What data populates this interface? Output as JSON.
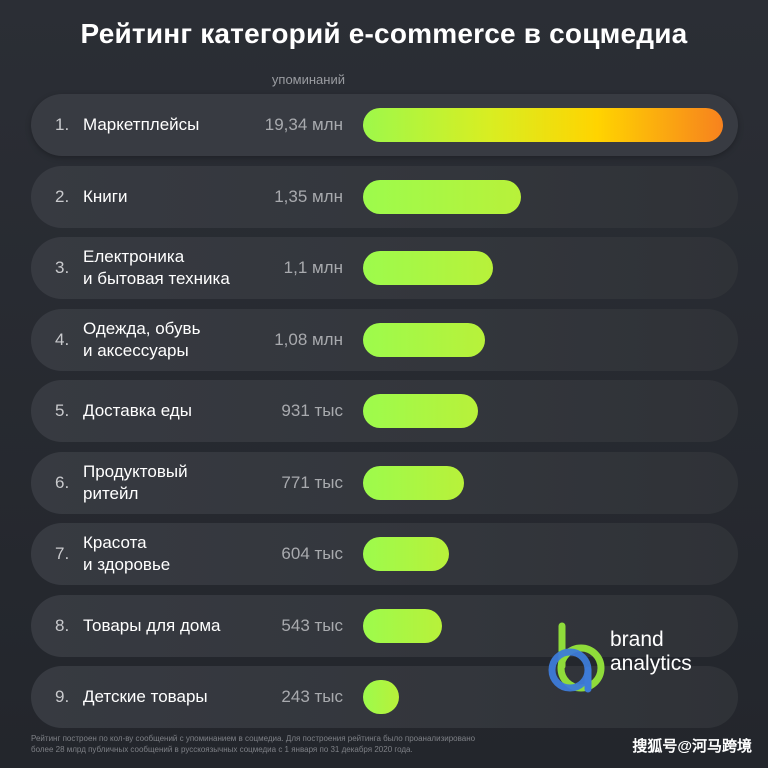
{
  "title": "Рейтинг категорий e-commerce в соцмедиа",
  "column_header": "упоминаний",
  "chart_data": {
    "type": "bar",
    "orientation": "horizontal",
    "title": "Рейтинг категорий e-commerce в соцмедиа",
    "value_label": "упоминаний",
    "categories": [
      {
        "rank": "1.",
        "lines": [
          "Маркетплейсы"
        ],
        "value_label": "19,34 млн"
      },
      {
        "rank": "2.",
        "lines": [
          "Книги"
        ],
        "value_label": "1,35 млн"
      },
      {
        "rank": "3.",
        "lines": [
          "Електроника",
          "и бытовая техника"
        ],
        "value_label": "1,1 млн"
      },
      {
        "rank": "4.",
        "lines": [
          "Одежда, обувь",
          "и аксессуары"
        ],
        "value_label": "1,08 млн"
      },
      {
        "rank": "5.",
        "lines": [
          "Доставка еды"
        ],
        "value_label": "931 тыс"
      },
      {
        "rank": "6.",
        "lines": [
          "Продуктовый",
          "ритейл"
        ],
        "value_label": "771 тыс"
      },
      {
        "rank": "7.",
        "lines": [
          "Красота",
          "и здоровье"
        ],
        "value_label": "604 тыс"
      },
      {
        "rank": "8.",
        "lines": [
          "Товары для дома"
        ],
        "value_label": "543 тыс"
      },
      {
        "rank": "9.",
        "lines": [
          "Детские товары"
        ],
        "value_label": "243 тыс"
      }
    ],
    "values": [
      19340000,
      1350000,
      1100000,
      1080000,
      931000,
      771000,
      604000,
      543000,
      243000
    ],
    "bar_fraction": [
      1.0,
      0.44,
      0.36,
      0.34,
      0.32,
      0.28,
      0.24,
      0.22,
      0.1
    ],
    "colors": {
      "bar": "#9dfb4c",
      "top_bar_end": "#f7821e",
      "top_bar_mid": "#ffd400"
    }
  },
  "logo": {
    "line1": "brand",
    "line2": "analytics",
    "colors": {
      "blue": "#3d7bd8",
      "green": "#8fdc3a"
    }
  },
  "footnote": {
    "line1": "Рейтинг построен по кол-ву сообщений с упоминанием в соцмедиа. Для построения рейтинга было проанализировано",
    "line2": "более 28 млрд публичных сообщений в русскоязычных соцмедиа с 1 января по 31 декабря 2020 года."
  },
  "watermark": "搜狐号@河马跨境"
}
